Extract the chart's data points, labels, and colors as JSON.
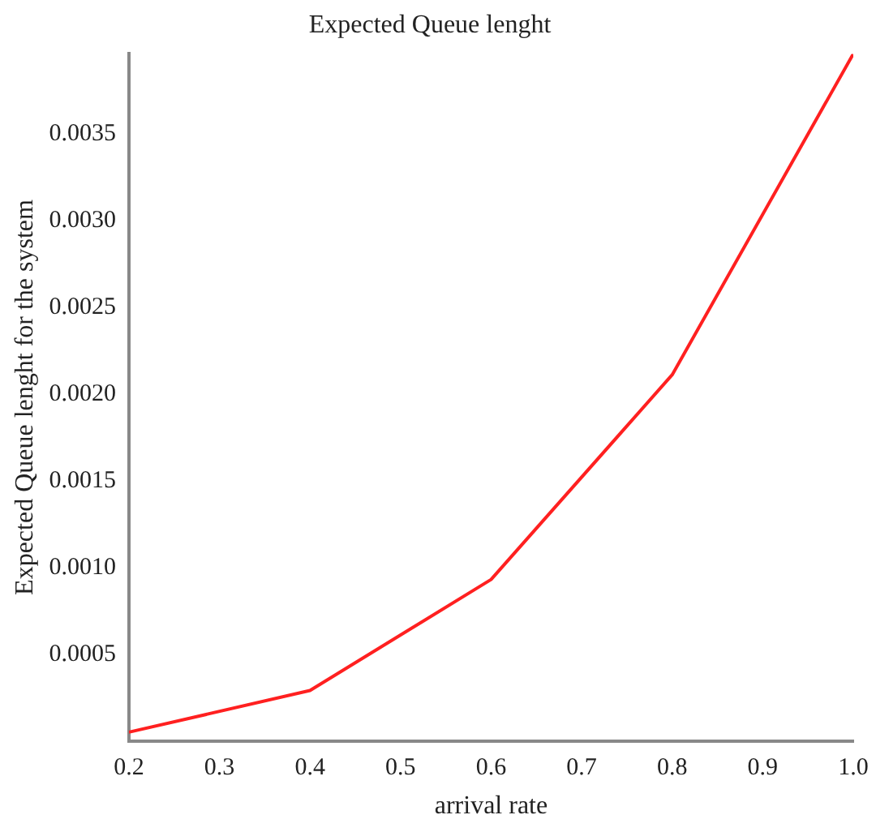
{
  "chart_data": {
    "type": "line",
    "title": "Expected Queue lenght",
    "xlabel": "arrival rate",
    "ylabel": "Expected Queue lenght for the system",
    "x": [
      0.2,
      0.4,
      0.6,
      0.8,
      1.0
    ],
    "series": [
      {
        "color": "#ff2020",
        "values": [
          5e-05,
          0.00029,
          0.00093,
          0.00211,
          0.00396
        ]
      }
    ],
    "xlim": [
      0.2,
      1.0
    ],
    "xticks": [
      0.2,
      0.3,
      0.4,
      0.5,
      0.6,
      0.7,
      0.8,
      0.9,
      {
        "value": 1.0,
        "label": "1.0"
      }
    ],
    "ylim": [
      0,
      0.00396
    ],
    "yticks": [
      {
        "value": 0.0005,
        "label": "0.0005"
      },
      {
        "value": 0.001,
        "label": "0.0010"
      },
      {
        "value": 0.0015,
        "label": "0.0015"
      },
      {
        "value": 0.002,
        "label": "0.0020"
      },
      {
        "value": 0.0025,
        "label": "0.0025"
      },
      {
        "value": 0.003,
        "label": "0.0030"
      },
      {
        "value": 0.0035,
        "label": "0.0035"
      }
    ],
    "grid": false,
    "legend": false,
    "marker": "none",
    "line_style": "solid"
  }
}
